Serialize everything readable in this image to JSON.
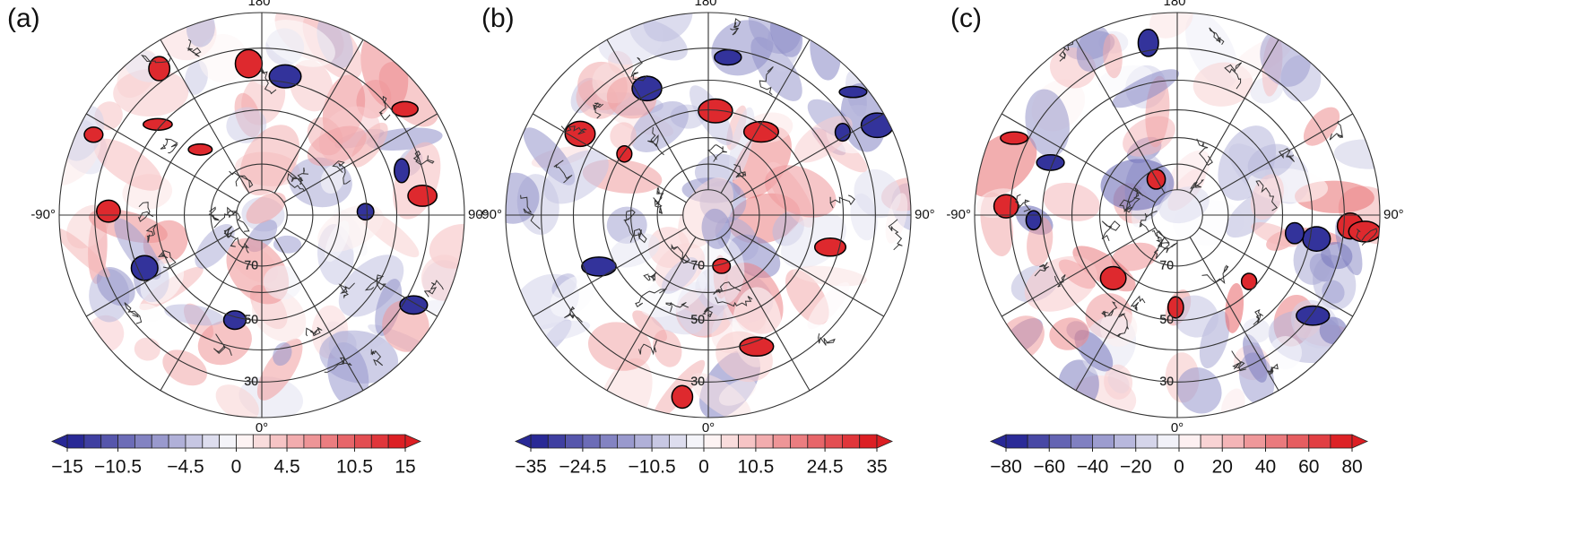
{
  "lat_circles": [
    20,
    30,
    40,
    50,
    60,
    70,
    80
  ],
  "meridians": [
    0,
    30,
    60,
    90,
    120,
    150,
    180,
    210,
    240,
    270,
    300,
    330
  ],
  "panels": [
    {
      "label": "(a)",
      "lon_labels": [
        {
          "value": 180,
          "label": "180°"
        },
        {
          "value": -90,
          "label": "-90°"
        },
        {
          "value": 90,
          "label": "90°"
        },
        {
          "value": 0,
          "label": "0°"
        }
      ],
      "lat_labels": [
        70,
        50,
        30
      ],
      "colorbar": {
        "lim": [
          -15,
          15
        ],
        "step": 1.5,
        "ticks": [
          {
            "value": -15,
            "label": "−15"
          },
          {
            "value": -10.5,
            "label": "−10.5"
          },
          {
            "value": -4.5,
            "label": "−4.5"
          },
          0,
          4.5,
          10.5,
          15
        ]
      }
    },
    {
      "label": "(b)",
      "lon_labels": [
        {
          "value": 180,
          "label": "180°"
        },
        {
          "value": -90,
          "label": "-90°"
        },
        {
          "value": 90,
          "label": "90°"
        },
        {
          "value": 0,
          "label": "0°"
        }
      ],
      "lat_labels": [
        70,
        50,
        30
      ],
      "colorbar": {
        "lim": [
          -35,
          35
        ],
        "step": 3.5,
        "ticks": [
          {
            "value": -35,
            "label": "−35"
          },
          {
            "value": -24.5,
            "label": "−24.5"
          },
          {
            "value": -10.5,
            "label": "−10.5"
          },
          0,
          10.5,
          24.5,
          35
        ]
      }
    },
    {
      "label": "(c)",
      "lon_labels": [
        {
          "value": 180,
          "label": "180°"
        },
        {
          "value": -90,
          "label": "-90°"
        },
        {
          "value": 90,
          "label": "90°"
        },
        {
          "value": 0,
          "label": "0°"
        }
      ],
      "lat_labels": [
        70,
        50,
        30
      ],
      "colorbar": {
        "lim": [
          -80,
          80
        ],
        "step": 10,
        "ticks": [
          {
            "value": -80,
            "label": "−80"
          },
          {
            "value": -60,
            "label": "−60"
          },
          {
            "value": -40,
            "label": "−40"
          },
          {
            "value": -20,
            "label": "−20"
          },
          0,
          20,
          40,
          60,
          80
        ]
      }
    }
  ]
}
